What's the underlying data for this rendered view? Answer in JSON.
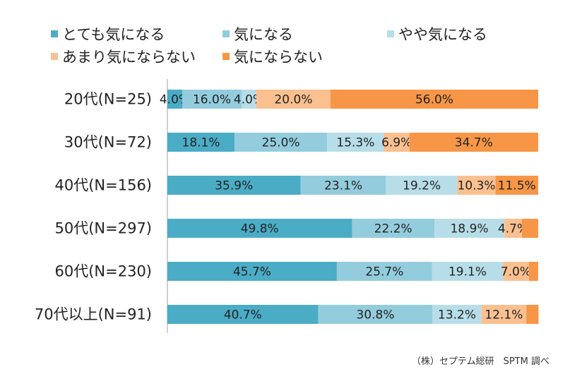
{
  "chart_data": {
    "type": "bar",
    "orientation": "horizontal",
    "stacked": true,
    "categories": [
      "20代(N=25)",
      "30代(N=72)",
      "40代(N=156)",
      "50代(N=297)",
      "60代(N=230)",
      "70代以上(N=91)"
    ],
    "series": [
      {
        "name": "とても気になる",
        "color": "#4BACC6",
        "values": [
          4.0,
          18.1,
          35.9,
          49.8,
          45.7,
          40.7
        ]
      },
      {
        "name": "気になる",
        "color": "#93CDDD",
        "values": [
          16.0,
          25.0,
          23.1,
          22.2,
          25.7,
          30.8
        ]
      },
      {
        "name": "やや気になる",
        "color": "#B7DEE8",
        "values": [
          4.0,
          15.3,
          19.2,
          18.9,
          19.1,
          13.2
        ]
      },
      {
        "name": "あまり気にならない",
        "color": "#FAC090",
        "values": [
          20.0,
          6.9,
          10.3,
          4.7,
          7.0,
          12.1
        ]
      },
      {
        "name": "気にならない",
        "color": "#F79646",
        "values": [
          56.0,
          34.7,
          11.5,
          4.4,
          2.5,
          3.3
        ]
      }
    ],
    "data_labels": [
      [
        "4.0%",
        "16.0%",
        "4.0%",
        "20.0%",
        "56.0%"
      ],
      [
        "18.1%",
        "25.0%",
        "15.3%",
        "6.9%",
        "34.7%"
      ],
      [
        "35.9%",
        "23.1%",
        "19.2%",
        "10.3%",
        "11.5%"
      ],
      [
        "49.8%",
        "22.2%",
        "18.9%",
        "4.7%",
        ""
      ],
      [
        "45.7%",
        "25.7%",
        "19.1%",
        "7.0%",
        ""
      ],
      [
        "40.7%",
        "30.8%",
        "13.2%",
        "12.1%",
        ""
      ]
    ],
    "xlim": [
      0,
      100
    ],
    "legend_position": "top",
    "grid": false
  },
  "source_text": "（株）セプテム総研　SPTM 調べ"
}
